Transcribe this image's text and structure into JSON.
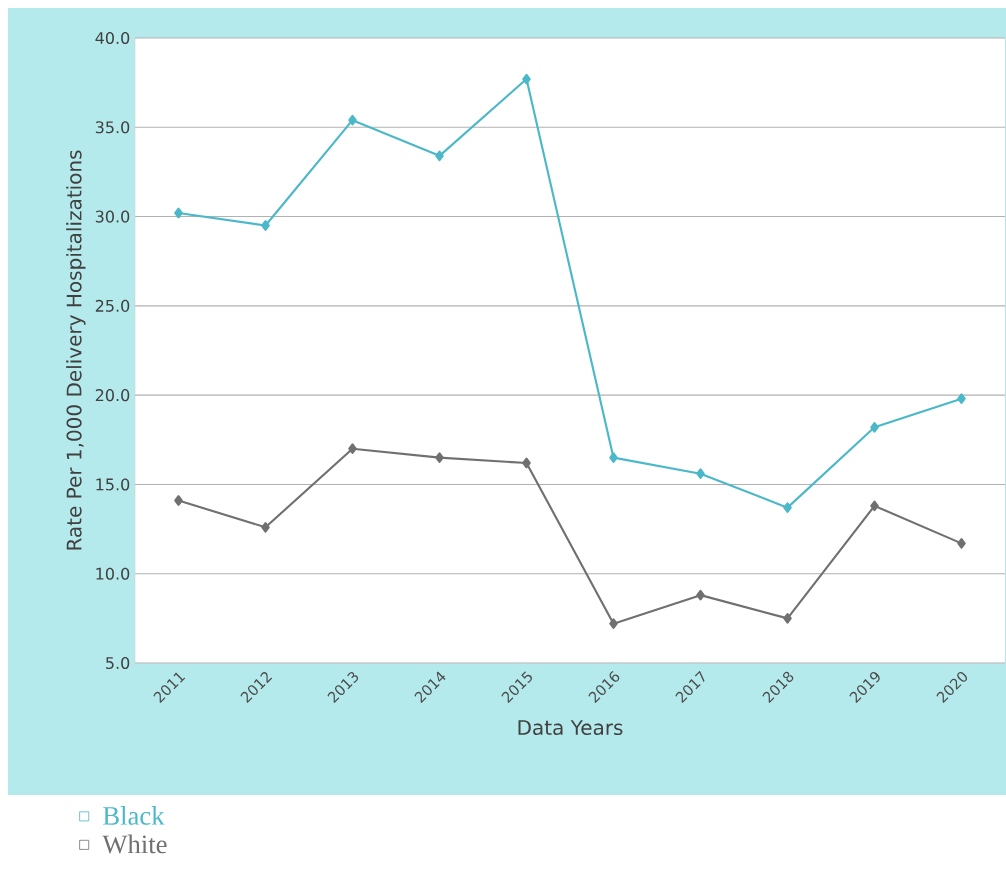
{
  "chart_data": {
    "type": "line",
    "xlabel": "Data Years",
    "ylabel": "Rate Per 1,000 Delivery Hospitalizations",
    "categories": [
      "2011",
      "2012",
      "2013",
      "2014",
      "2015",
      "2016",
      "2017",
      "2018",
      "2019",
      "2020"
    ],
    "series": [
      {
        "name": "Black",
        "color": "#4bb8c9",
        "values": [
          30.2,
          29.5,
          35.4,
          33.4,
          37.7,
          16.5,
          15.6,
          13.7,
          18.2,
          19.8
        ]
      },
      {
        "name": "White",
        "color": "#707070",
        "values": [
          14.1,
          12.6,
          17.0,
          16.5,
          16.2,
          7.2,
          8.8,
          7.5,
          13.8,
          11.7
        ]
      }
    ],
    "ylim": [
      5,
      40
    ],
    "yticks": [
      {
        "value": 5,
        "label": "5.0"
      },
      {
        "value": 10,
        "label": "10.0"
      },
      {
        "value": 15,
        "label": "15.0"
      },
      {
        "value": 20,
        "label": "20.0"
      },
      {
        "value": 25,
        "label": "25.0"
      },
      {
        "value": 30,
        "label": "30.0"
      },
      {
        "value": 35,
        "label": "35.0"
      },
      {
        "value": 40,
        "label": "40.0"
      }
    ],
    "grid": "y",
    "legend": "bottom left",
    "marker": "diamond",
    "line_style": "solid"
  }
}
